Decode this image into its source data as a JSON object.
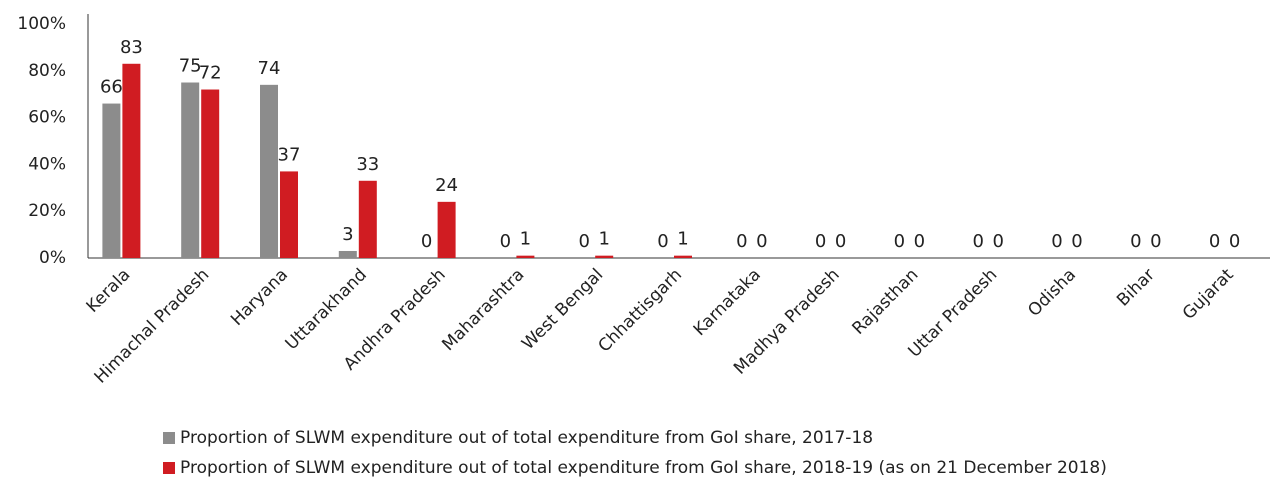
{
  "chart_data": {
    "type": "bar",
    "categories": [
      "Kerala",
      "Himachal Pradesh",
      "Haryana",
      "Uttarakhand",
      "Andhra Pradesh",
      "Maharashtra",
      "West Bengal",
      "Chhattisgarh",
      "Karnataka",
      "Madhya Pradesh",
      "Rajasthan",
      "Uttar Pradesh",
      "Odisha",
      "Bihar",
      "Gujarat"
    ],
    "series": [
      {
        "name": "Proportion of SLWM expenditure out of total expenditure from GoI share, 2017-18",
        "color": "#8c8c8c",
        "values": [
          66,
          75,
          74,
          3,
          0,
          0,
          0,
          0,
          0,
          0,
          0,
          0,
          0,
          0,
          0
        ]
      },
      {
        "name": "Proportion of SLWM expenditure out of total expenditure from GoI share, 2018-19 (as on 21 December 2018)",
        "color": "#d01c22",
        "values": [
          83,
          72,
          37,
          33,
          24,
          1,
          1,
          1,
          0,
          0,
          0,
          0,
          0,
          0,
          0
        ]
      }
    ],
    "ylim": [
      0,
      100
    ],
    "yticks": [
      {
        "value": 0,
        "label": "0%"
      },
      {
        "value": 20,
        "label": "20%"
      },
      {
        "value": 40,
        "label": "40%"
      },
      {
        "value": 60,
        "label": "60%"
      },
      {
        "value": 80,
        "label": "80%"
      },
      {
        "value": 100,
        "label": "100%"
      }
    ],
    "grid": false
  }
}
